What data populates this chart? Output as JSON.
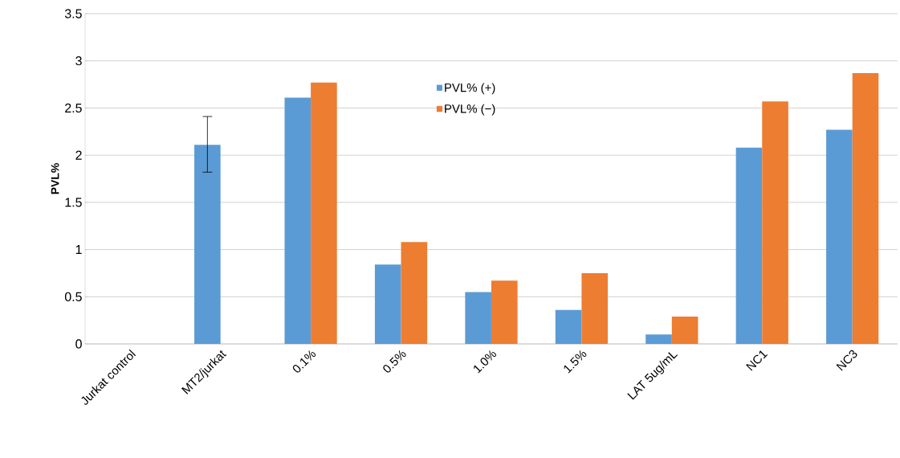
{
  "chart_data": {
    "type": "bar",
    "ylabel": "PVL%",
    "categories": [
      "Jurkat control",
      "MT2/jurkat",
      "0.1%",
      "0.5%",
      "1.0%",
      "1.5%",
      "LAT 5ug/mL",
      "NC1",
      "NC3"
    ],
    "series": [
      {
        "name": "PVL% (+)",
        "color": "#5b9bd5",
        "values": [
          null,
          2.11,
          2.61,
          0.84,
          0.55,
          0.36,
          0.1,
          2.08,
          2.27
        ],
        "errors": [
          null,
          [
            1.82,
            2.41
          ],
          null,
          null,
          null,
          null,
          null,
          null,
          null
        ]
      },
      {
        "name": "PVL% (−)",
        "color": "#ed7d31",
        "values": [
          null,
          null,
          2.77,
          1.08,
          0.67,
          0.75,
          0.29,
          2.57,
          2.87
        ]
      }
    ],
    "ylim": [
      0,
      3.5
    ],
    "yticks": [
      0,
      0.5,
      1,
      1.5,
      2,
      2.5,
      3,
      3.5
    ],
    "grid": "y",
    "legend": "top"
  }
}
